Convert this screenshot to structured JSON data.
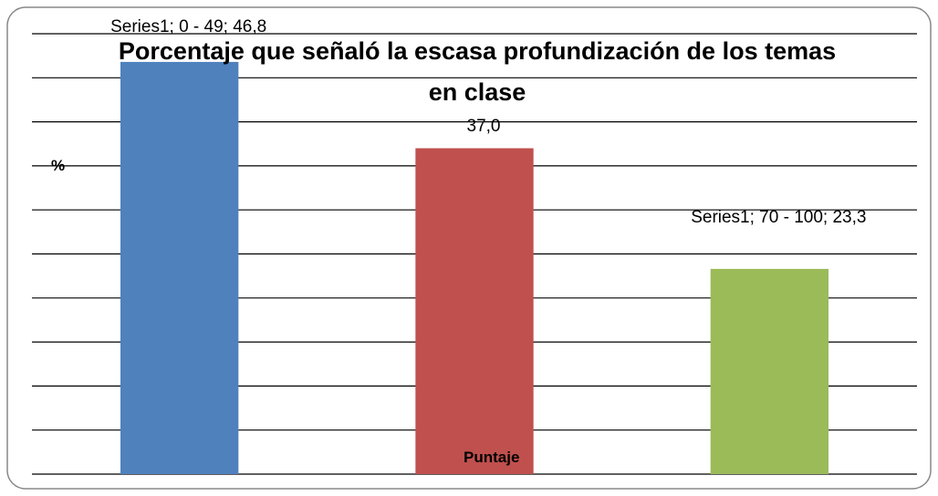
{
  "chart_data": {
    "type": "bar",
    "title": "Porcentaje que señaló la escasa profundización de los temas en clase",
    "x_label": "Puntaje",
    "y_label": "%",
    "categories": [
      "0 - 49",
      null,
      "70 - 100"
    ],
    "series": [
      {
        "name": "Series1",
        "values": [
          46.8,
          37.0,
          23.3
        ],
        "value_labels": [
          "Series1; 0 - 49; 46,8",
          "37,0",
          "Series1; 70 - 100; 23,3"
        ],
        "colors": [
          "#4f81bd",
          "#c0504d",
          "#9bbb59"
        ]
      }
    ],
    "ylim": [
      0,
      50
    ],
    "yticks": [
      0,
      5,
      10,
      15,
      20,
      25,
      30,
      35,
      40,
      45,
      50
    ],
    "grid": true
  }
}
